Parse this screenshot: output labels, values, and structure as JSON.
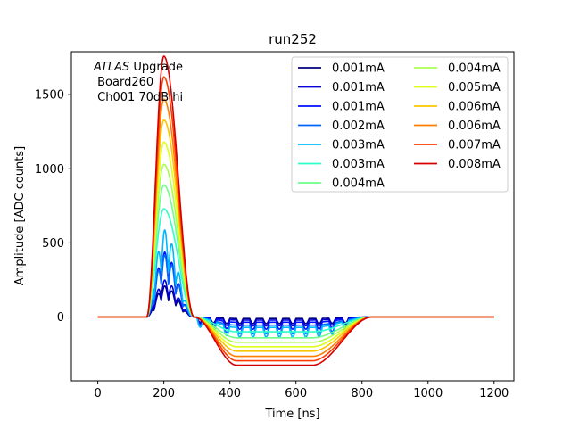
{
  "chart_data": {
    "type": "line",
    "title": "run252",
    "xlabel": "Time [ns]",
    "ylabel": "Amplitude [ADC counts]",
    "xlim": [
      -80,
      1260
    ],
    "ylim": [
      -430,
      1790
    ],
    "xticks": [
      0,
      200,
      400,
      600,
      800,
      1000,
      1200
    ],
    "yticks": [
      0,
      500,
      1000,
      1500
    ],
    "grid": false,
    "legend_position": "top-right",
    "legend_columns": 2,
    "annotations": {
      "atlas_italic": "ATLAS",
      "atlas_rest": " Upgrade",
      "board": " Board260",
      "channel": " Ch001 70dB hi"
    },
    "pulse_shape": {
      "description_units": "ns",
      "baseline": 0,
      "rise_start": 148,
      "peak_time": 200,
      "fall_end": 292,
      "undershoot_flat_start": 420,
      "undershoot_end": 650,
      "recovery_end": 830,
      "x_end": 1200
    },
    "series": [
      {
        "name": "0.001mA",
        "color": "#00007f",
        "peak": 210,
        "undershoot": -10,
        "oscillating": true
      },
      {
        "name": "0.001mA",
        "color": "#0000d9",
        "peak": 250,
        "undershoot": -20,
        "oscillating": true
      },
      {
        "name": "0.001mA",
        "color": "#0010ff",
        "peak": 440,
        "undershoot": -35,
        "oscillating": true
      },
      {
        "name": "0.002mA",
        "color": "#0064ff",
        "peak": 420,
        "undershoot": -55,
        "oscillating": true
      },
      {
        "name": "0.003mA",
        "color": "#00b8ff",
        "peak": 590,
        "undershoot": -70,
        "oscillating": true
      },
      {
        "name": "0.003mA",
        "color": "#2cffca",
        "peak": 730,
        "undershoot": -100,
        "oscillating": false
      },
      {
        "name": "0.004mA",
        "color": "#6dff8a",
        "peak": 890,
        "undershoot": -140,
        "oscillating": false
      },
      {
        "name": "0.004mA",
        "color": "#aaff4d",
        "peak": 1030,
        "undershoot": -170,
        "oscillating": false
      },
      {
        "name": "0.005mA",
        "color": "#dfff18",
        "peak": 1180,
        "undershoot": -200,
        "oscillating": false
      },
      {
        "name": "0.006mA",
        "color": "#ffc400",
        "peak": 1330,
        "undershoot": -230,
        "oscillating": false
      },
      {
        "name": "0.006mA",
        "color": "#ff7e00",
        "peak": 1470,
        "undershoot": -265,
        "oscillating": false
      },
      {
        "name": "0.007mA",
        "color": "#ff3b00",
        "peak": 1620,
        "undershoot": -295,
        "oscillating": false
      },
      {
        "name": "0.008mA",
        "color": "#d40000",
        "peak": 1760,
        "undershoot": -325,
        "oscillating": false
      }
    ]
  }
}
